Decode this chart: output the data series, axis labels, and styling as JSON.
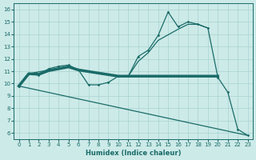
{
  "bg_color": "#cceae8",
  "grid_color": "#a8d4d0",
  "line_color": "#1a6b68",
  "xlabel": "Humidex (Indice chaleur)",
  "xlim": [
    -0.5,
    23.5
  ],
  "ylim": [
    5.5,
    16.5
  ],
  "xticks": [
    0,
    1,
    2,
    3,
    4,
    5,
    6,
    7,
    8,
    9,
    10,
    11,
    12,
    13,
    14,
    15,
    16,
    17,
    18,
    19,
    20,
    21,
    22,
    23
  ],
  "yticks": [
    6,
    7,
    8,
    9,
    10,
    11,
    12,
    13,
    14,
    15,
    16
  ],
  "jagged_x": [
    0,
    1,
    2,
    3,
    4,
    5,
    6,
    7,
    8,
    9,
    10,
    11,
    12,
    13,
    14,
    15,
    16,
    17,
    18,
    19,
    20,
    21,
    22,
    23
  ],
  "jagged_y": [
    9.8,
    10.8,
    10.7,
    11.2,
    11.4,
    11.5,
    11.1,
    9.9,
    9.9,
    10.1,
    10.6,
    10.6,
    12.2,
    12.7,
    13.9,
    15.8,
    14.6,
    15.0,
    14.8,
    14.5,
    10.5,
    9.3,
    6.3,
    5.8
  ],
  "rising_x": [
    1,
    3,
    5,
    6,
    10,
    11,
    12,
    13,
    14,
    16,
    17,
    18,
    19
  ],
  "rising_y": [
    10.8,
    11.1,
    11.4,
    11.1,
    10.6,
    10.6,
    11.8,
    12.5,
    13.5,
    14.4,
    14.8,
    14.8,
    14.5
  ],
  "thick_x": [
    0,
    1,
    2,
    3,
    4,
    5,
    6,
    10,
    20
  ],
  "thick_y": [
    9.8,
    10.8,
    10.75,
    11.05,
    11.2,
    11.35,
    11.1,
    10.6,
    10.6
  ],
  "decline_x": [
    0,
    23
  ],
  "decline_y": [
    9.8,
    5.8
  ]
}
